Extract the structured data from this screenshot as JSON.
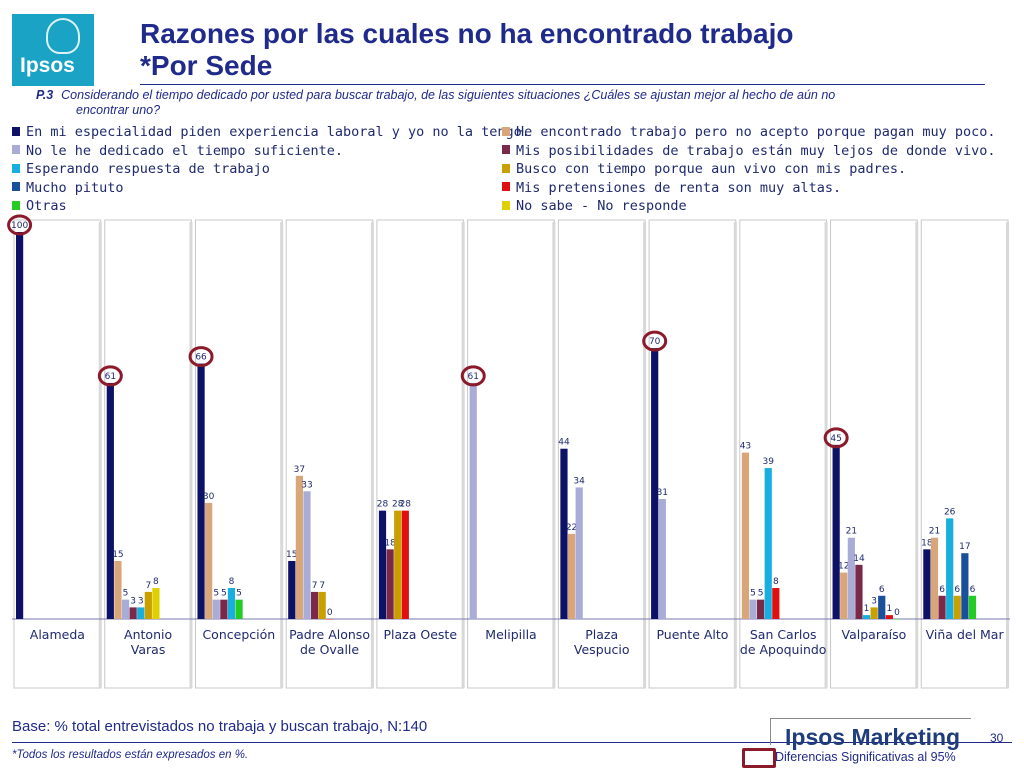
{
  "logo": {
    "text": "Ipsos"
  },
  "header": {
    "title_line1": "Razones por las cuales no ha encontrado trabajo",
    "title_line2": "*Por Sede"
  },
  "question": {
    "number": "P.3",
    "text_line1": "Considerando el tiempo dedicado por usted  para buscar trabajo, de las siguientes situaciones ¿Cuáles se ajustan mejor al hecho de aún no",
    "text_line2": "encontrar uno?"
  },
  "chart_data": {
    "type": "bar",
    "categories": [
      "Alameda",
      "Antonio Varas",
      "Concepción",
      "Padre Alonso de Ovalle",
      "Plaza Oeste",
      "Melipilla",
      "Plaza Vespucio",
      "Puente Alto",
      "San Carlos de Apoquindo",
      "Valparaíso",
      "Viña del Mar"
    ],
    "ylim": [
      0,
      100
    ],
    "grid": false,
    "legend_position": "top",
    "series": [
      {
        "name": "En mi especialidad piden experiencia laboral y yo no la tengo.",
        "color": "#0d1266",
        "values": [
          100,
          61,
          66,
          15,
          28,
          null,
          44,
          70,
          null,
          45,
          18
        ]
      },
      {
        "name": "He encontrado trabajo pero no acepto porque pagan muy poco.",
        "color": "#d9a679",
        "values": [
          null,
          15,
          30,
          37,
          null,
          null,
          22,
          null,
          43,
          12,
          21
        ]
      },
      {
        "name": "No le he dedicado el tiempo suficiente.",
        "color": "#a9acd6",
        "values": [
          null,
          5,
          5,
          33,
          null,
          61,
          34,
          31,
          5,
          21,
          null
        ]
      },
      {
        "name": "Mis posibilidades de trabajo están muy lejos de donde vivo.",
        "color": "#7a2a48",
        "values": [
          null,
          3,
          5,
          7,
          18,
          null,
          null,
          null,
          5,
          14,
          6
        ]
      },
      {
        "name": "Esperando respuesta de trabajo",
        "color": "#17aee0",
        "values": [
          null,
          3,
          8,
          null,
          null,
          null,
          null,
          null,
          39,
          1,
          26
        ]
      },
      {
        "name": "Busco con tiempo porque aun vivo con mis padres.",
        "color": "#c9a000",
        "values": [
          null,
          7,
          null,
          7,
          28,
          null,
          null,
          null,
          null,
          3,
          6
        ]
      },
      {
        "name": "Mucho pituto",
        "color": "#1a4f9c",
        "values": [
          null,
          null,
          null,
          null,
          null,
          null,
          null,
          null,
          null,
          6,
          17
        ]
      },
      {
        "name": "Mis pretensiones de renta son muy altas.",
        "color": "#e01010",
        "values": [
          null,
          null,
          null,
          0,
          28,
          null,
          null,
          null,
          8,
          1,
          null
        ]
      },
      {
        "name": "Otras",
        "color": "#22cc22",
        "values": [
          null,
          null,
          5,
          null,
          null,
          null,
          null,
          null,
          null,
          0,
          6
        ]
      },
      {
        "name": "No sabe - No responde",
        "color": "#e0d000",
        "values": [
          null,
          8,
          null,
          null,
          null,
          null,
          null,
          null,
          null,
          null,
          null
        ]
      }
    ],
    "significant": [
      {
        "category": "Alameda",
        "series": "En mi especialidad piden experiencia laboral y yo no la tengo."
      },
      {
        "category": "Antonio Varas",
        "series": "En mi especialidad piden experiencia laboral y yo no la tengo."
      },
      {
        "category": "Concepción",
        "series": "En mi especialidad piden experiencia laboral y yo no la tengo."
      },
      {
        "category": "Melipilla",
        "series": "No le he dedicado el tiempo suficiente."
      },
      {
        "category": "Puente Alto",
        "series": "En mi especialidad piden experiencia laboral y yo no la tengo."
      },
      {
        "category": "Valparaíso",
        "series": "En mi especialidad piden experiencia laboral y yo no la tengo."
      }
    ]
  },
  "footer": {
    "base": "Base: % total entrevistados no trabaja y buscan trabajo, N:140",
    "note": "*Todos los resultados están expresados en %.",
    "brand": "Ipsos Marketing",
    "page": "30",
    "sig_label": "Diferencias Significativas al 95%",
    "sig_color": "#8b1a2a"
  }
}
